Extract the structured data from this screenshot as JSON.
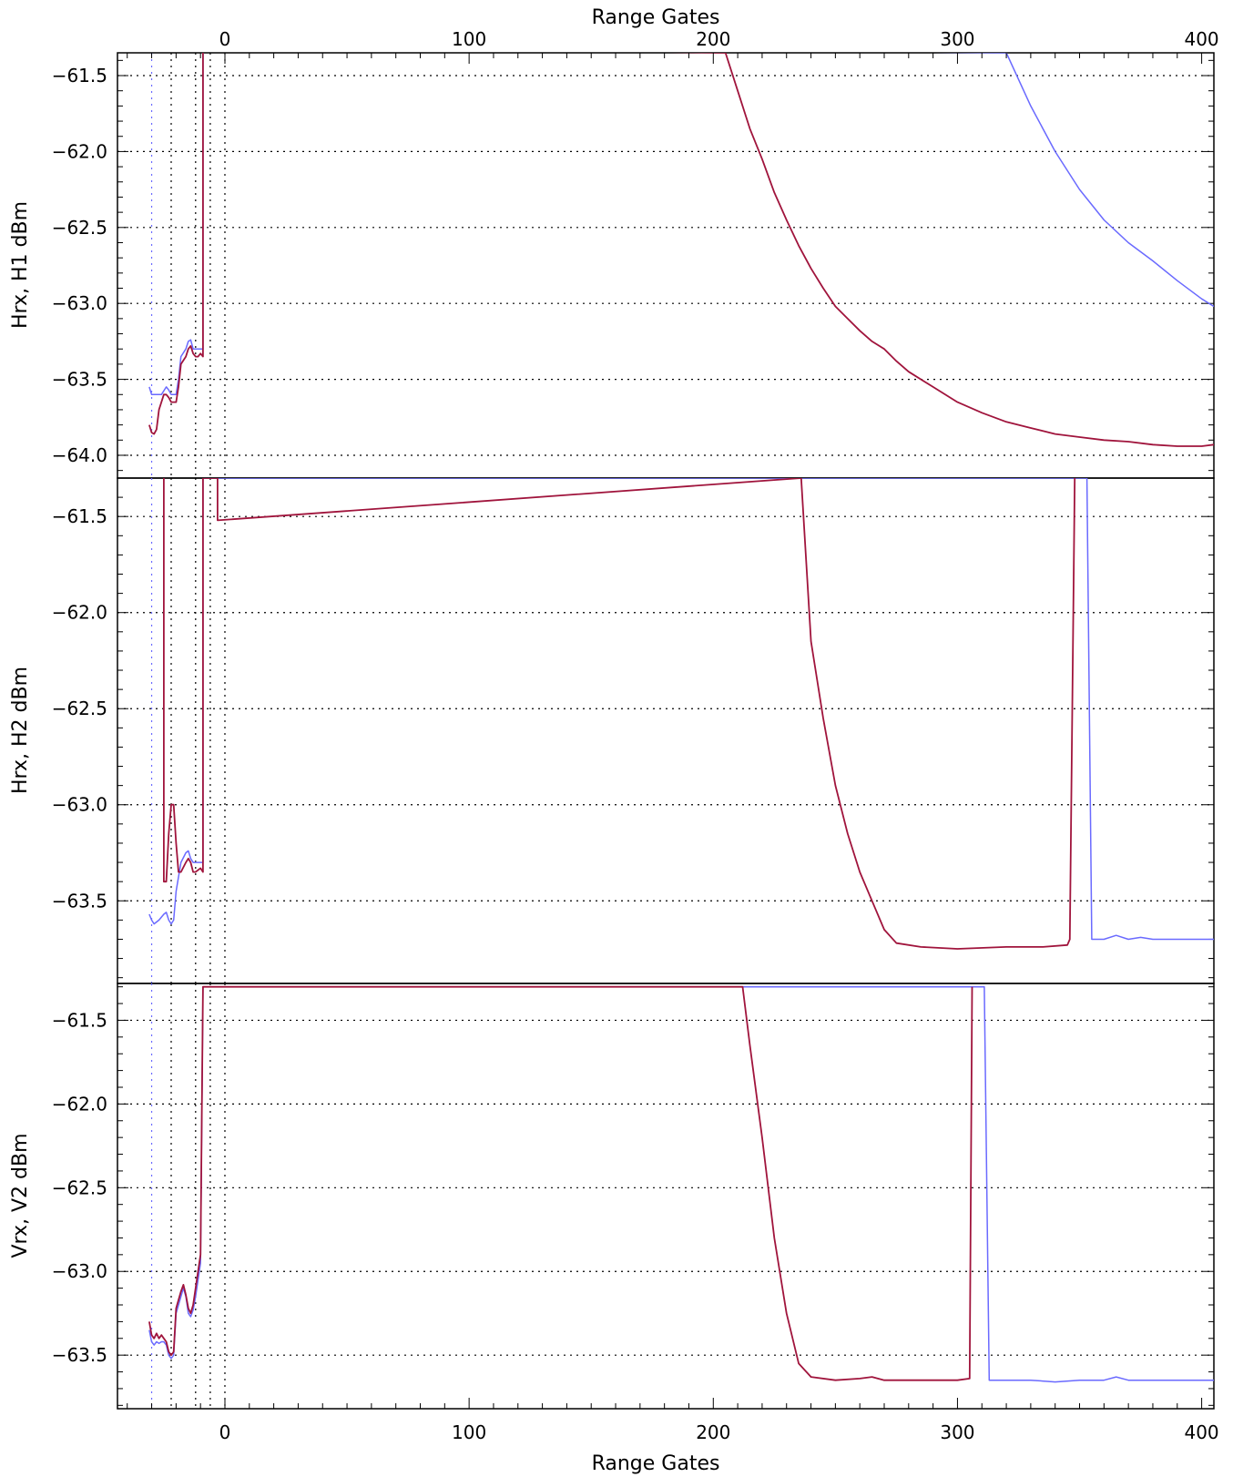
{
  "chart_data": {
    "type": "line",
    "x_axis": {
      "label": "Range Gates",
      "range": [
        -44,
        405
      ],
      "ticks": [
        0,
        100,
        200,
        300,
        400
      ],
      "tick_labels": [
        "0",
        "100",
        "200",
        "300",
        "400"
      ]
    },
    "colors": {
      "series_1": "#6a6aff",
      "series_2": "#a0143c",
      "grid": "#000000"
    },
    "reference_lines_x": [
      -30,
      -22,
      -12,
      -6,
      0
    ],
    "panels": [
      {
        "ylabel": "Hrx, H1 dBm",
        "ylim": [
          -64.15,
          -61.35
        ],
        "yticks": [
          -61.5,
          -62.0,
          -62.5,
          -63.0,
          -63.5,
          -64.0
        ],
        "ytick_labels": [
          "−61.5",
          "−62.0",
          "−62.5",
          "−63.0",
          "−63.5",
          "−64.0"
        ],
        "series": [
          {
            "color": "#6a6aff",
            "points": [
              [
                -31,
                -63.55
              ],
              [
                -30,
                -63.6
              ],
              [
                -28,
                -63.6
              ],
              [
                -26,
                -63.6
              ],
              [
                -24,
                -63.55
              ],
              [
                -23,
                -63.57
              ],
              [
                -22,
                -63.6
              ],
              [
                -20,
                -63.6
              ],
              [
                -19,
                -63.5
              ],
              [
                -18,
                -63.35
              ],
              [
                -16,
                -63.3
              ],
              [
                -15,
                -63.25
              ],
              [
                -14,
                -63.24
              ],
              [
                -13,
                -63.3
              ],
              [
                -12,
                -63.3
              ],
              [
                -11,
                -63.3
              ],
              [
                -10,
                -63.3
              ],
              [
                -9,
                -63.3
              ],
              [
                -9,
                -61.3
              ],
              [
                320,
                -61.35
              ],
              [
                330,
                -61.7
              ],
              [
                340,
                -62.0
              ],
              [
                350,
                -62.25
              ],
              [
                360,
                -62.45
              ],
              [
                370,
                -62.6
              ],
              [
                380,
                -62.72
              ],
              [
                390,
                -62.85
              ],
              [
                400,
                -62.97
              ],
              [
                405,
                -63.02
              ]
            ]
          },
          {
            "color": "#a0143c",
            "points": [
              [
                -31,
                -63.8
              ],
              [
                -30,
                -63.85
              ],
              [
                -29,
                -63.86
              ],
              [
                -28,
                -63.83
              ],
              [
                -27,
                -63.7
              ],
              [
                -25,
                -63.6
              ],
              [
                -24,
                -63.6
              ],
              [
                -23,
                -63.62
              ],
              [
                -22,
                -63.65
              ],
              [
                -20,
                -63.65
              ],
              [
                -19,
                -63.55
              ],
              [
                -18,
                -63.4
              ],
              [
                -16,
                -63.35
              ],
              [
                -15,
                -63.3
              ],
              [
                -14,
                -63.28
              ],
              [
                -13,
                -63.33
              ],
              [
                -12,
                -63.35
              ],
              [
                -11,
                -63.35
              ],
              [
                -10,
                -63.33
              ],
              [
                -9,
                -63.35
              ],
              [
                -9,
                -61.3
              ],
              [
                205,
                -61.35
              ],
              [
                210,
                -61.6
              ],
              [
                215,
                -61.85
              ],
              [
                220,
                -62.05
              ],
              [
                225,
                -62.27
              ],
              [
                230,
                -62.45
              ],
              [
                235,
                -62.62
              ],
              [
                240,
                -62.77
              ],
              [
                245,
                -62.9
              ],
              [
                250,
                -63.02
              ],
              [
                255,
                -63.1
              ],
              [
                260,
                -63.18
              ],
              [
                265,
                -63.25
              ],
              [
                270,
                -63.3
              ],
              [
                275,
                -63.38
              ],
              [
                280,
                -63.45
              ],
              [
                290,
                -63.55
              ],
              [
                300,
                -63.65
              ],
              [
                310,
                -63.72
              ],
              [
                320,
                -63.78
              ],
              [
                330,
                -63.82
              ],
              [
                340,
                -63.86
              ],
              [
                350,
                -63.88
              ],
              [
                360,
                -63.9
              ],
              [
                370,
                -63.91
              ],
              [
                380,
                -63.93
              ],
              [
                390,
                -63.94
              ],
              [
                400,
                -63.94
              ],
              [
                405,
                -63.93
              ]
            ]
          }
        ]
      },
      {
        "ylabel": "Hrx, H2 dBm",
        "ylim": [
          -63.93,
          -61.3
        ],
        "yticks": [
          -61.5,
          -62.0,
          -62.5,
          -63.0,
          -63.5
        ],
        "ytick_labels": [
          "−61.5",
          "−62.0",
          "−62.5",
          "−63.0",
          "−63.5"
        ],
        "series": [
          {
            "color": "#6a6aff",
            "points": [
              [
                -31,
                -63.57
              ],
              [
                -30,
                -63.6
              ],
              [
                -29,
                -63.62
              ],
              [
                -27,
                -63.6
              ],
              [
                -25,
                -63.57
              ],
              [
                -24,
                -63.56
              ],
              [
                -23,
                -63.6
              ],
              [
                -22,
                -63.62
              ],
              [
                -21,
                -63.6
              ],
              [
                -20,
                -63.45
              ],
              [
                -18,
                -63.3
              ],
              [
                -16,
                -63.25
              ],
              [
                -15,
                -63.24
              ],
              [
                -14,
                -63.28
              ],
              [
                -13,
                -63.3
              ],
              [
                -12,
                -63.3
              ],
              [
                -10,
                -63.3
              ],
              [
                -9,
                -63.3
              ],
              [
                -9,
                -61.3
              ],
              [
                353,
                -61.3
              ],
              [
                355,
                -63.7
              ],
              [
                360,
                -63.7
              ],
              [
                365,
                -63.68
              ],
              [
                370,
                -63.7
              ],
              [
                375,
                -63.69
              ],
              [
                380,
                -63.7
              ],
              [
                390,
                -63.7
              ],
              [
                400,
                -63.7
              ],
              [
                405,
                -63.7
              ]
            ]
          },
          {
            "color": "#a0143c",
            "points": [
              [
                -25,
                -61.3
              ],
              [
                -25,
                -63.4
              ],
              [
                -24,
                -63.4
              ],
              [
                -23,
                -63.15
              ],
              [
                -22,
                -63.0
              ],
              [
                -21,
                -63.0
              ],
              [
                -20,
                -63.2
              ],
              [
                -19,
                -63.35
              ],
              [
                -18,
                -63.35
              ],
              [
                -16,
                -63.3
              ],
              [
                -15,
                -63.28
              ],
              [
                -14,
                -63.3
              ],
              [
                -13,
                -63.35
              ],
              [
                -12,
                -63.35
              ],
              [
                -10,
                -63.33
              ],
              [
                -9,
                -63.35
              ],
              [
                -9,
                -61.3
              ],
              [
                -3,
                -61.3
              ],
              [
                -3,
                -61.52
              ],
              [
                236,
                -61.3
              ],
              [
                240,
                -62.15
              ],
              [
                245,
                -62.55
              ],
              [
                250,
                -62.9
              ],
              [
                255,
                -63.15
              ],
              [
                260,
                -63.35
              ],
              [
                265,
                -63.5
              ],
              [
                270,
                -63.65
              ],
              [
                275,
                -63.72
              ],
              [
                285,
                -63.74
              ],
              [
                300,
                -63.75
              ],
              [
                320,
                -63.74
              ],
              [
                335,
                -63.74
              ],
              [
                345,
                -63.73
              ],
              [
                346,
                -63.7
              ],
              [
                348,
                -61.3
              ]
            ]
          }
        ]
      },
      {
        "ylabel": "Vrx, V2 dBm",
        "ylim": [
          -63.82,
          -61.28
        ],
        "yticks": [
          -61.5,
          -62.0,
          -62.5,
          -63.0,
          -63.5
        ],
        "ytick_labels": [
          "−61.5",
          "−62.0",
          "−62.5",
          "−63.0",
          "−63.5"
        ],
        "series": [
          {
            "color": "#6a6aff",
            "points": [
              [
                -31,
                -63.35
              ],
              [
                -30,
                -63.42
              ],
              [
                -29,
                -63.44
              ],
              [
                -28,
                -63.42
              ],
              [
                -27,
                -63.43
              ],
              [
                -26,
                -63.42
              ],
              [
                -25,
                -63.42
              ],
              [
                -24,
                -63.44
              ],
              [
                -23,
                -63.5
              ],
              [
                -22,
                -63.52
              ],
              [
                -21,
                -63.5
              ],
              [
                -20,
                -63.25
              ],
              [
                -18,
                -63.15
              ],
              [
                -17,
                -63.1
              ],
              [
                -16,
                -63.15
              ],
              [
                -15,
                -63.25
              ],
              [
                -14,
                -63.27
              ],
              [
                -13,
                -63.23
              ],
              [
                -12,
                -63.15
              ],
              [
                -11,
                -63.05
              ],
              [
                -10,
                -62.95
              ],
              [
                -9,
                -61.3
              ],
              [
                311,
                -61.3
              ],
              [
                313,
                -63.65
              ],
              [
                320,
                -63.65
              ],
              [
                330,
                -63.65
              ],
              [
                340,
                -63.66
              ],
              [
                350,
                -63.65
              ],
              [
                360,
                -63.65
              ],
              [
                365,
                -63.63
              ],
              [
                370,
                -63.65
              ],
              [
                380,
                -63.65
              ],
              [
                390,
                -63.65
              ],
              [
                405,
                -63.65
              ]
            ]
          },
          {
            "color": "#a0143c",
            "points": [
              [
                -31,
                -63.3
              ],
              [
                -30,
                -63.38
              ],
              [
                -29,
                -63.4
              ],
              [
                -28,
                -63.37
              ],
              [
                -27,
                -63.4
              ],
              [
                -26,
                -63.38
              ],
              [
                -25,
                -63.4
              ],
              [
                -24,
                -63.42
              ],
              [
                -23,
                -63.48
              ],
              [
                -22,
                -63.5
              ],
              [
                -21,
                -63.48
              ],
              [
                -20,
                -63.22
              ],
              [
                -18,
                -63.12
              ],
              [
                -17,
                -63.08
              ],
              [
                -16,
                -63.14
              ],
              [
                -15,
                -63.22
              ],
              [
                -14,
                -63.25
              ],
              [
                -13,
                -63.2
              ],
              [
                -12,
                -63.1
              ],
              [
                -11,
                -63.0
              ],
              [
                -10,
                -62.9
              ],
              [
                -9,
                -61.3
              ],
              [
                212,
                -61.3
              ],
              [
                215,
                -61.65
              ],
              [
                220,
                -62.2
              ],
              [
                225,
                -62.8
              ],
              [
                230,
                -63.25
              ],
              [
                235,
                -63.55
              ],
              [
                240,
                -63.63
              ],
              [
                250,
                -63.65
              ],
              [
                260,
                -63.64
              ],
              [
                265,
                -63.63
              ],
              [
                270,
                -63.65
              ],
              [
                280,
                -63.65
              ],
              [
                290,
                -63.65
              ],
              [
                300,
                -63.65
              ],
              [
                305,
                -63.64
              ],
              [
                306,
                -61.3
              ]
            ]
          }
        ]
      }
    ]
  }
}
